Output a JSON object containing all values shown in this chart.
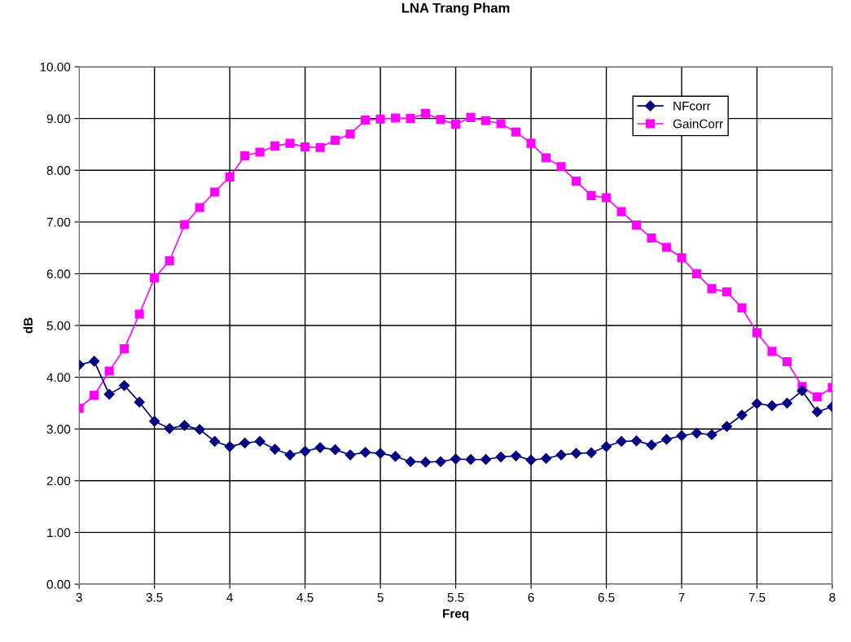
{
  "chart_data": {
    "type": "line",
    "title": "LNA Trang Pham",
    "xlabel": "Freq",
    "ylabel": "dB",
    "x": [
      3.0,
      3.1,
      3.2,
      3.3,
      3.4,
      3.5,
      3.6,
      3.7,
      3.8,
      3.9,
      4.0,
      4.1,
      4.2,
      4.3,
      4.4,
      4.5,
      4.6,
      4.7,
      4.8,
      4.9,
      5.0,
      5.1,
      5.2,
      5.3,
      5.4,
      5.5,
      5.6,
      5.7,
      5.8,
      5.9,
      6.0,
      6.1,
      6.2,
      6.3,
      6.4,
      6.5,
      6.6,
      6.7,
      6.8,
      6.9,
      7.0,
      7.1,
      7.2,
      7.3,
      7.4,
      7.5,
      7.6,
      7.7,
      7.8,
      7.9,
      8.0
    ],
    "series": [
      {
        "name": "NFcorr",
        "color": "#000080",
        "marker": "diamond",
        "values": [
          4.24,
          4.31,
          3.67,
          3.84,
          3.52,
          3.15,
          3.01,
          3.07,
          2.99,
          2.76,
          2.66,
          2.73,
          2.76,
          2.61,
          2.5,
          2.57,
          2.64,
          2.6,
          2.5,
          2.55,
          2.53,
          2.47,
          2.37,
          2.36,
          2.37,
          2.42,
          2.41,
          2.41,
          2.46,
          2.48,
          2.4,
          2.43,
          2.5,
          2.53,
          2.54,
          2.66,
          2.76,
          2.77,
          2.69,
          2.8,
          2.87,
          2.92,
          2.89,
          3.05,
          3.27,
          3.49,
          3.45,
          3.5,
          3.74,
          3.33,
          3.43
        ]
      },
      {
        "name": "GainCorr",
        "color": "#ff00ff",
        "marker": "square",
        "values": [
          3.4,
          3.65,
          4.12,
          4.55,
          5.22,
          5.92,
          6.25,
          6.95,
          7.28,
          7.58,
          7.87,
          8.28,
          8.35,
          8.47,
          8.52,
          8.45,
          8.44,
          8.58,
          8.7,
          8.97,
          8.99,
          9.01,
          9.0,
          9.1,
          8.98,
          8.89,
          9.02,
          8.96,
          8.9,
          8.74,
          8.52,
          8.24,
          8.07,
          7.79,
          7.51,
          7.47,
          7.2,
          6.94,
          6.69,
          6.51,
          6.31,
          6.0,
          5.71,
          5.65,
          5.34,
          4.86,
          4.5,
          4.3,
          3.82,
          3.62,
          3.8
        ]
      }
    ],
    "xlim": [
      3,
      8
    ],
    "xticks": [
      3,
      3.5,
      4,
      4.5,
      5,
      5.5,
      6,
      6.5,
      7,
      7.5,
      8
    ],
    "ylim": [
      0,
      10
    ],
    "yticks": [
      {
        "value": 0,
        "label": "0.00"
      },
      {
        "value": 1,
        "label": "1.00"
      },
      {
        "value": 2,
        "label": "2.00"
      },
      {
        "value": 3,
        "label": "3.00"
      },
      {
        "value": 4,
        "label": "4.00"
      },
      {
        "value": 5,
        "label": "5.00"
      },
      {
        "value": 6,
        "label": "6.00"
      },
      {
        "value": 7,
        "label": "7.00"
      },
      {
        "value": 8,
        "label": "8.00"
      },
      {
        "value": 9,
        "label": "9.00"
      },
      {
        "value": 10,
        "label": "10.00"
      }
    ],
    "grid": true,
    "legend": "top right",
    "line_style": "solid"
  }
}
